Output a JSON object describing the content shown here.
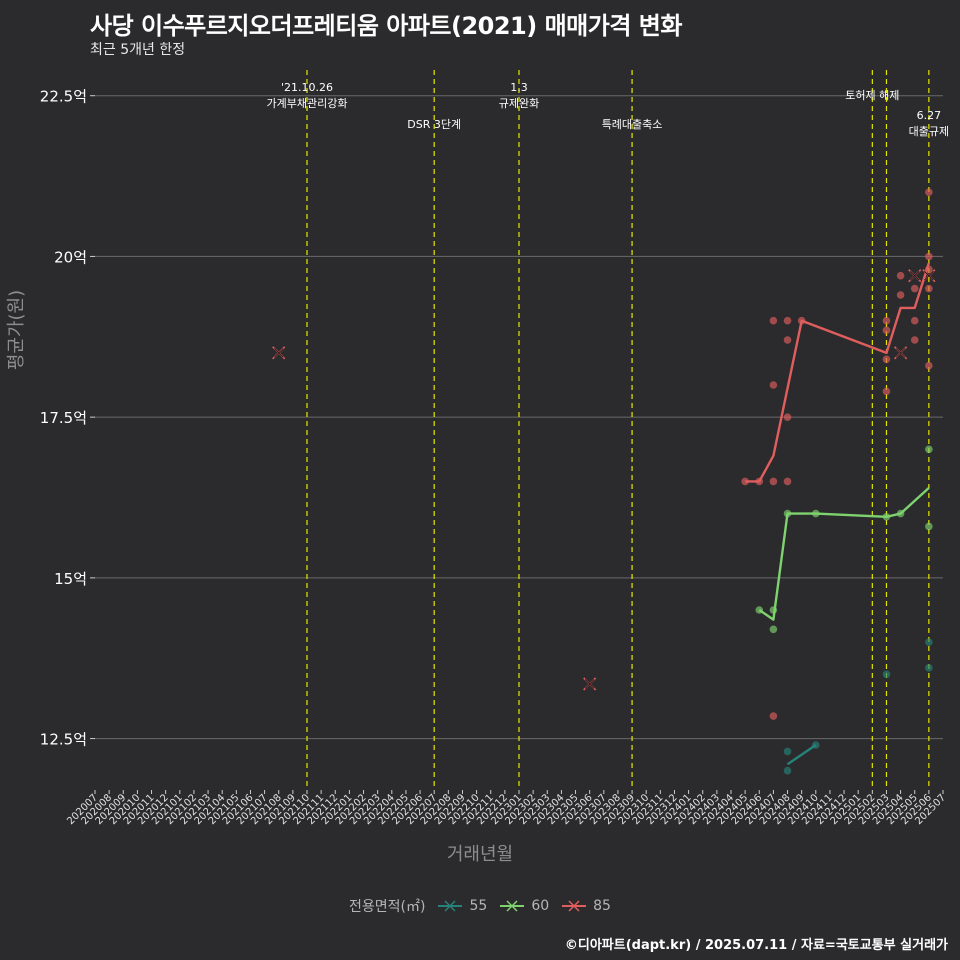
{
  "title": "사당 이수푸르지오더프레티움 아파트(2021) 매매가격 변화",
  "subtitle": "최근 5개년 한정",
  "credit": "©디아파트(dapt.kr) / 2025.07.11 / 자료=국토교통부 실거래가",
  "chart_data": {
    "type": "line",
    "title": "사당 이수푸르지오더프레티움 아파트(2021) 매매가격 변화",
    "xlabel": "거래년월",
    "ylabel": "평균가(원)",
    "ylim": [
      11.7,
      22.9
    ],
    "yticks": [
      12.5,
      15,
      17.5,
      20,
      22.5
    ],
    "ytick_labels": [
      "12.5억",
      "15억",
      "17.5억",
      "20억",
      "22.5억"
    ],
    "x_categories": [
      "202007",
      "202008",
      "202009",
      "202010",
      "202011",
      "202012",
      "202101",
      "202102",
      "202103",
      "202104",
      "202105",
      "202106",
      "202107",
      "202108",
      "202109",
      "202110",
      "202111",
      "202112",
      "202201",
      "202202",
      "202203",
      "202204",
      "202205",
      "202206",
      "202207",
      "202208",
      "202209",
      "202210",
      "202211",
      "202212",
      "202301",
      "202302",
      "202303",
      "202304",
      "202305",
      "202306",
      "202307",
      "202308",
      "202309",
      "202310",
      "202311",
      "202312",
      "202401",
      "202402",
      "202403",
      "202404",
      "202405",
      "202406",
      "202407",
      "202408",
      "202409",
      "202410",
      "202411",
      "202412",
      "202501",
      "202502",
      "202503",
      "202504",
      "202505",
      "202506",
      "202507"
    ],
    "legend_title": "전용면적(㎡)",
    "colors": {
      "55": "#26827a",
      "60": "#7fd36e",
      "85": "#e05e5e"
    },
    "series": [
      {
        "name": "55",
        "line": [
          [
            "202408",
            12.1
          ],
          [
            "202410",
            12.4
          ]
        ],
        "points": [
          [
            "202408",
            12.3
          ],
          [
            "202408",
            12.0
          ],
          [
            "202410",
            12.4
          ],
          [
            "202503",
            13.5
          ],
          [
            "202506",
            14.0
          ],
          [
            "202506",
            13.6
          ]
        ],
        "crosses": []
      },
      {
        "name": "60",
        "line": [
          [
            "202406",
            14.5
          ],
          [
            "202407",
            14.35
          ],
          [
            "202408",
            16.0
          ],
          [
            "202410",
            16.0
          ],
          [
            "202503",
            15.95
          ],
          [
            "202504",
            16.0
          ],
          [
            "202506",
            16.4
          ]
        ],
        "points": [
          [
            "202406",
            14.5
          ],
          [
            "202407",
            14.5
          ],
          [
            "202407",
            14.2
          ],
          [
            "202408",
            16.0
          ],
          [
            "202410",
            16.0
          ],
          [
            "202503",
            15.95
          ],
          [
            "202504",
            16.0
          ],
          [
            "202506",
            17.0
          ],
          [
            "202506",
            15.8
          ]
        ],
        "crosses": []
      },
      {
        "name": "85",
        "line": [
          [
            "202405",
            16.5
          ],
          [
            "202406",
            16.5
          ],
          [
            "202407",
            16.9
          ],
          [
            "202409",
            19.0
          ],
          [
            "202503",
            18.5
          ],
          [
            "202504",
            19.2
          ],
          [
            "202505",
            19.2
          ],
          [
            "202506",
            19.9
          ]
        ],
        "points": [
          [
            "202405",
            16.5
          ],
          [
            "202406",
            16.5
          ],
          [
            "202407",
            16.5
          ],
          [
            "202408",
            16.5
          ],
          [
            "202407",
            18.0
          ],
          [
            "202408",
            17.5
          ],
          [
            "202408",
            18.7
          ],
          [
            "202407",
            19.0
          ],
          [
            "202408",
            19.0
          ],
          [
            "202409",
            19.0
          ],
          [
            "202407",
            12.85
          ],
          [
            "202503",
            17.9
          ],
          [
            "202503",
            18.4
          ],
          [
            "202503",
            18.85
          ],
          [
            "202503",
            19.0
          ],
          [
            "202504",
            19.4
          ],
          [
            "202504",
            19.7
          ],
          [
            "202505",
            19.5
          ],
          [
            "202505",
            19.0
          ],
          [
            "202505",
            18.7
          ],
          [
            "202506",
            21.0
          ],
          [
            "202506",
            20.0
          ],
          [
            "202506",
            19.5
          ],
          [
            "202506",
            18.3
          ],
          [
            "202506",
            19.8
          ]
        ],
        "crosses": [
          [
            "202108",
            18.5
          ],
          [
            "202306",
            13.35
          ],
          [
            "202504",
            18.5
          ],
          [
            "202505",
            19.7
          ],
          [
            "202506",
            19.7
          ]
        ]
      }
    ],
    "events": [
      {
        "x": "202110",
        "label_lines": [
          "'21.10.26",
          "가계부채관리강화"
        ],
        "level": 0
      },
      {
        "x": "202207",
        "label_lines": [
          "DSR 3단계"
        ],
        "level": 1
      },
      {
        "x": "202301",
        "label_lines": [
          "1.3",
          "규제완화"
        ],
        "level": 0
      },
      {
        "x": "202309",
        "label_lines": [
          "특례대출축소"
        ],
        "level": 1
      },
      {
        "x": "202502",
        "label_lines": [
          "토허제 해제"
        ],
        "level": 2
      },
      {
        "x": "202503",
        "label_lines": [],
        "level": 2
      },
      {
        "x": "202506",
        "label_lines": [
          "6.27",
          "대출규제"
        ],
        "level": 3
      }
    ]
  }
}
